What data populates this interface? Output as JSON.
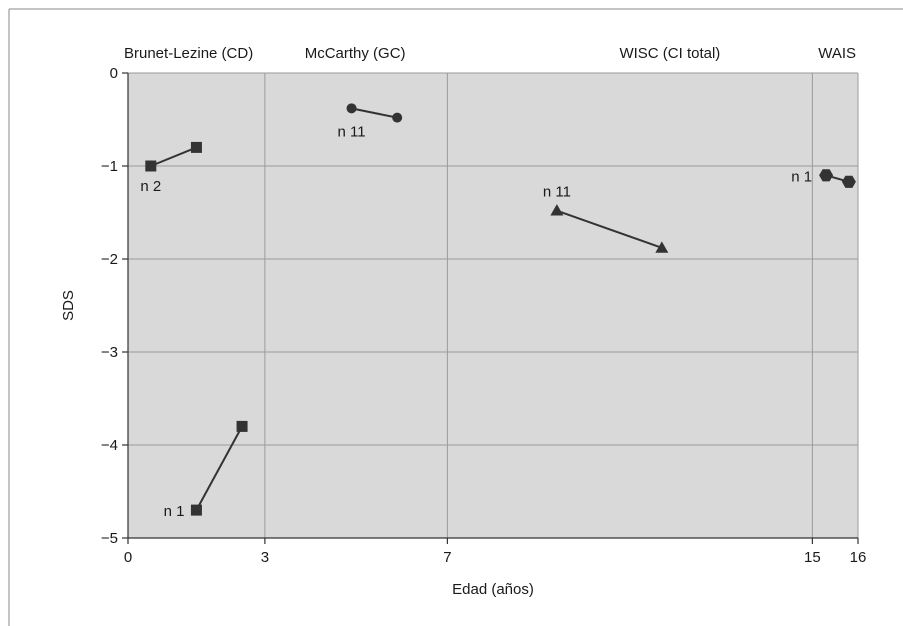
{
  "chart_data": {
    "type": "line",
    "title": "",
    "xlabel": "Edad (años)",
    "ylabel": "SDS",
    "xlim": [
      0,
      16
    ],
    "ylim": [
      -5,
      0
    ],
    "x_ticks": [
      0,
      3,
      7,
      15,
      16
    ],
    "x_tick_labels": [
      "0",
      "3",
      "7",
      "15",
      "16"
    ],
    "y_ticks": [
      0,
      -1,
      -2,
      -3,
      -4,
      -5
    ],
    "y_tick_labels": [
      "0",
      "−1",
      "−2",
      "−3",
      "−4",
      "−5"
    ],
    "grid": true,
    "plot_background": "#d9d9d9",
    "line_color": "#333333",
    "sections": [
      {
        "label": "Brunet-Lezine (CD)",
        "x_start": 0,
        "x_end": 3
      },
      {
        "label": "McCarthy (GC)",
        "x_start": 3,
        "x_end": 7
      },
      {
        "label": "WISC (CI total)",
        "x_start": 7,
        "x_end": 15
      },
      {
        "label": "WAIS",
        "x_start": 15,
        "x_end": 16
      }
    ],
    "series": [
      {
        "label": "n 2",
        "marker": "square",
        "x": [
          0.5,
          1.5
        ],
        "y": [
          -1.0,
          -0.8
        ]
      },
      {
        "label": "n 1",
        "marker": "square",
        "x": [
          1.5,
          2.5
        ],
        "y": [
          -4.7,
          -3.8
        ]
      },
      {
        "label": "n 11",
        "marker": "circle",
        "x": [
          4.9,
          5.9
        ],
        "y": [
          -0.38,
          -0.48
        ]
      },
      {
        "label": "n 11",
        "marker": "triangle",
        "x": [
          9.4,
          11.7
        ],
        "y": [
          -1.48,
          -1.88
        ]
      },
      {
        "label": "n 1",
        "marker": "hexagon",
        "x": [
          15.3,
          15.8
        ],
        "y": [
          -1.1,
          -1.17
        ]
      }
    ]
  }
}
